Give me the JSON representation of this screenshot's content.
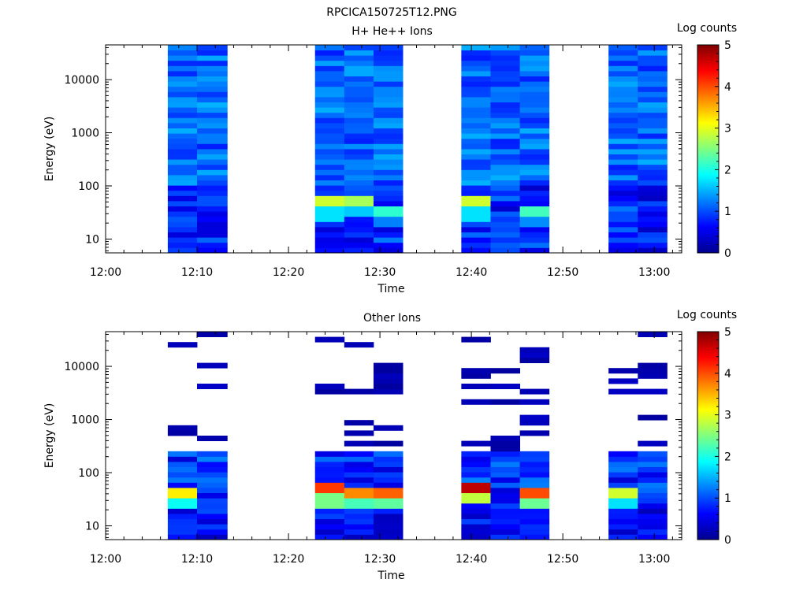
{
  "figure_title": "RPCICA150725T12.PNG",
  "chart_data": [
    {
      "type": "heatmap",
      "title": "H+ He++ Ions",
      "xlabel": "Time",
      "ylabel": "Energy (eV)",
      "x_ticks": [
        "12:00",
        "12:10",
        "12:20",
        "12:30",
        "12:40",
        "12:50",
        "13:00"
      ],
      "x_range_minutes": [
        0,
        63
      ],
      "y_scale": "log",
      "y_range": [
        5.5,
        45000
      ],
      "y_ticks": [
        "10",
        "100",
        "1000",
        "10000"
      ],
      "colorbar": {
        "label": "Log counts",
        "range": [
          0,
          5
        ],
        "ticks": [
          "0",
          "1",
          "2",
          "3",
          "4",
          "5"
        ]
      },
      "time_columns_minutes": [
        [
          6.8,
          10.0
        ],
        [
          10.0,
          13.3
        ],
        [
          22.9,
          26.1
        ],
        [
          26.1,
          29.3
        ],
        [
          29.3,
          32.5
        ],
        [
          38.9,
          42.1
        ],
        [
          42.1,
          45.3
        ],
        [
          45.3,
          48.5
        ],
        [
          55.0,
          58.2
        ],
        [
          58.2,
          61.4
        ]
      ],
      "typical_level_above_100eV": 1.1,
      "features": [
        {
          "time_minutes": [
            22.9,
            26.1
          ],
          "energy_eV": [
            42,
            55
          ],
          "log_counts": 2.9
        },
        {
          "time_minutes": [
            26.1,
            29.3
          ],
          "energy_eV": [
            46,
            58
          ],
          "log_counts": 2.7
        },
        {
          "time_minutes": [
            29.3,
            32.5
          ],
          "energy_eV": [
            32,
            42
          ],
          "log_counts": 2.1
        },
        {
          "time_minutes": [
            38.9,
            42.1
          ],
          "energy_eV": [
            42,
            56
          ],
          "log_counts": 2.9
        },
        {
          "time_minutes": [
            45.3,
            48.5
          ],
          "energy_eV": [
            33,
            42
          ],
          "log_counts": 2.2
        }
      ]
    },
    {
      "type": "heatmap",
      "title": "Other Ions",
      "xlabel": "Time",
      "ylabel": "Energy (eV)",
      "x_ticks": [
        "12:00",
        "12:10",
        "12:20",
        "12:30",
        "12:40",
        "12:50",
        "13:00"
      ],
      "x_range_minutes": [
        0,
        63
      ],
      "y_scale": "log",
      "y_range": [
        5.5,
        45000
      ],
      "y_ticks": [
        "10",
        "100",
        "1000",
        "10000"
      ],
      "colorbar": {
        "label": "Log counts",
        "range": [
          0,
          5
        ],
        "ticks": [
          "0",
          "1",
          "2",
          "3",
          "4",
          "5"
        ]
      },
      "time_columns_minutes": [
        [
          6.8,
          10.0
        ],
        [
          10.0,
          13.3
        ],
        [
          22.9,
          26.1
        ],
        [
          26.1,
          29.3
        ],
        [
          29.3,
          32.5
        ],
        [
          38.9,
          42.1
        ],
        [
          42.1,
          45.3
        ],
        [
          45.3,
          48.5
        ],
        [
          55.0,
          58.2
        ],
        [
          58.2,
          61.4
        ]
      ],
      "features": [
        {
          "time_minutes": [
            22.9,
            26.1
          ],
          "energy_eV": [
            42,
            56
          ],
          "log_counts": 4.1
        },
        {
          "time_minutes": [
            26.1,
            29.3
          ],
          "energy_eV": [
            37,
            47
          ],
          "log_counts": 3.7
        },
        {
          "time_minutes": [
            29.3,
            32.5
          ],
          "energy_eV": [
            37,
            47
          ],
          "log_counts": 3.9
        },
        {
          "time_minutes": [
            38.9,
            42.1
          ],
          "energy_eV": [
            47,
            58
          ],
          "log_counts": 4.7
        },
        {
          "time_minutes": [
            45.3,
            48.5
          ],
          "energy_eV": [
            37,
            46
          ],
          "log_counts": 4.0
        },
        {
          "time_minutes": [
            6.8,
            10.0
          ],
          "energy_eV": [
            37,
            46
          ],
          "log_counts": 3.2
        },
        {
          "time_minutes": [
            55.0,
            58.2
          ],
          "energy_eV": [
            36,
            47
          ],
          "log_counts": 2.9
        }
      ]
    }
  ]
}
